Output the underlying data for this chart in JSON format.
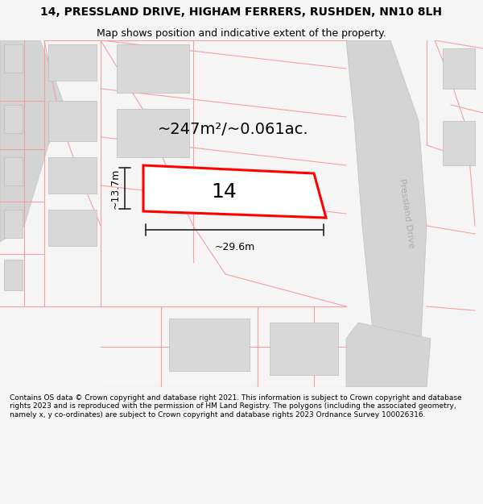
{
  "title_line1": "14, PRESSLAND DRIVE, HIGHAM FERRERS, RUSHDEN, NN10 8LH",
  "title_line2": "Map shows position and indicative extent of the property.",
  "footer_text": "Contains OS data © Crown copyright and database right 2021. This information is subject to Crown copyright and database rights 2023 and is reproduced with the permission of HM Land Registry. The polygons (including the associated geometry, namely x, y co-ordinates) are subject to Crown copyright and database rights 2023 Ordnance Survey 100026316.",
  "area_label": "~247m²/~0.061ac.",
  "number_label": "14",
  "width_label": "~29.6m",
  "height_label": "~13.7m",
  "bg_color": "#f5f5f5",
  "map_bg": "#ffffff",
  "plot_outline_color": "#ff0000",
  "building_fill": "#d8d8d8",
  "light_red_line": "#f5a0a0",
  "road_fill": "#d4d4d4",
  "road_label_color": "#aaaaaa",
  "dim_line_color": "#333333",
  "title_fontsize": 10,
  "subtitle_fontsize": 9,
  "footer_fontsize": 6.5,
  "area_fontsize": 14,
  "number_fontsize": 18,
  "dim_fontsize": 9
}
